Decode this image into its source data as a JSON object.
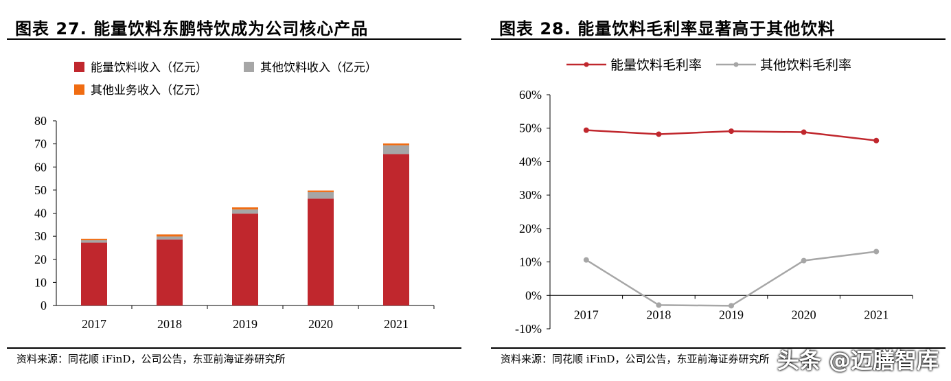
{
  "left_panel": {
    "title": "图表 27. 能量饮料东鹏特饮成为公司核心产品",
    "source": "资料来源：同花顺 iFinD，公司公告，东亚前海证券研究所"
  },
  "right_panel": {
    "title": "图表 28. 能量饮料毛利率显著高于其他饮料",
    "source": "资料来源：同花顺 iFinD，公司公告，东亚前海证券研究所"
  },
  "watermark": "头条 @迈膳智库",
  "chart_data": [
    {
      "type": "bar",
      "stacked": true,
      "title": "能量饮料东鹏特饮成为公司核心产品",
      "categories": [
        "2017",
        "2018",
        "2019",
        "2020",
        "2021"
      ],
      "series": [
        {
          "name": "能量饮料收入（亿元）",
          "color": "#C0272D",
          "values": [
            27.2,
            28.6,
            39.8,
            46.3,
            65.6
          ]
        },
        {
          "name": "其他饮料收入（亿元）",
          "color": "#A6A6A6",
          "values": [
            1.1,
            1.3,
            1.8,
            2.8,
            3.8
          ]
        },
        {
          "name": "其他业务收入（亿元）",
          "color": "#F06C12",
          "values": [
            0.6,
            0.9,
            0.9,
            0.7,
            0.8
          ]
        }
      ],
      "ylim": [
        0,
        80
      ],
      "yticks": [
        0,
        10,
        20,
        30,
        40,
        50,
        60,
        70,
        80
      ],
      "legend_position": "top-left"
    },
    {
      "type": "line",
      "title": "能量饮料毛利率显著高于其他饮料",
      "categories": [
        "2017",
        "2018",
        "2019",
        "2020",
        "2021"
      ],
      "series": [
        {
          "name": "能量饮料毛利率",
          "color": "#C0272D",
          "values": [
            49.4,
            48.2,
            49.1,
            48.8,
            46.3
          ]
        },
        {
          "name": "其他饮料毛利率",
          "color": "#A6A6A6",
          "values": [
            10.6,
            -2.9,
            -3.1,
            10.4,
            13.1
          ]
        }
      ],
      "ylim": [
        -10,
        60
      ],
      "yticks": [
        "-10%",
        "0%",
        "10%",
        "20%",
        "30%",
        "40%",
        "50%",
        "60%"
      ],
      "legend_position": "top"
    }
  ]
}
